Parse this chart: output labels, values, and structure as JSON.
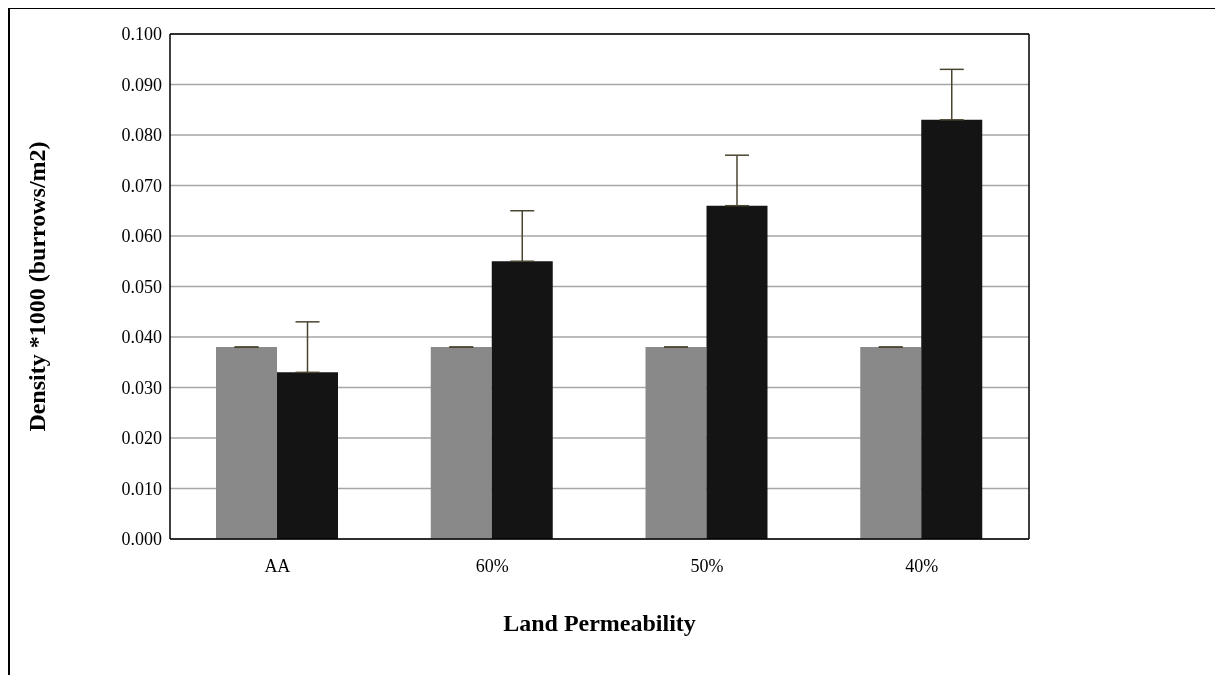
{
  "chart_data": {
    "type": "bar",
    "xlabel": "Land Permeability",
    "ylabel": "Density *1000 (burrows/m2)",
    "categories": [
      "AA",
      "60%",
      "50%",
      "40%"
    ],
    "series": [
      {
        "color": "#898989",
        "values": [
          0.038,
          0.038,
          0.038,
          0.038
        ],
        "errors": [
          [
            0.038,
            0.038
          ],
          [
            0.038,
            0.038
          ],
          [
            0.038,
            0.038
          ],
          [
            0.038,
            0.038
          ]
        ]
      },
      {
        "color": "#141414",
        "values": [
          0.033,
          0.055,
          0.066,
          0.083
        ],
        "errors": [
          [
            0.033,
            0.043
          ],
          [
            0.055,
            0.065
          ],
          [
            0.066,
            0.076
          ],
          [
            0.083,
            0.093
          ]
        ]
      }
    ],
    "ylim": [
      0,
      0.1
    ],
    "yticks": [
      {
        "value": 0,
        "label": "0.000"
      },
      {
        "value": 0.01,
        "label": "0.010"
      },
      {
        "value": 0.02,
        "label": "0.020"
      },
      {
        "value": 0.03,
        "label": "0.030"
      },
      {
        "value": 0.04,
        "label": "0.040"
      },
      {
        "value": 0.05,
        "label": "0.050"
      },
      {
        "value": 0.06,
        "label": "0.060"
      },
      {
        "value": 0.07,
        "label": "0.070"
      },
      {
        "value": 0.08,
        "label": "0.080"
      },
      {
        "value": 0.09,
        "label": "0.090"
      },
      {
        "value": 0.1,
        "label": "0.100"
      }
    ],
    "grid": "y",
    "legend": false
  }
}
